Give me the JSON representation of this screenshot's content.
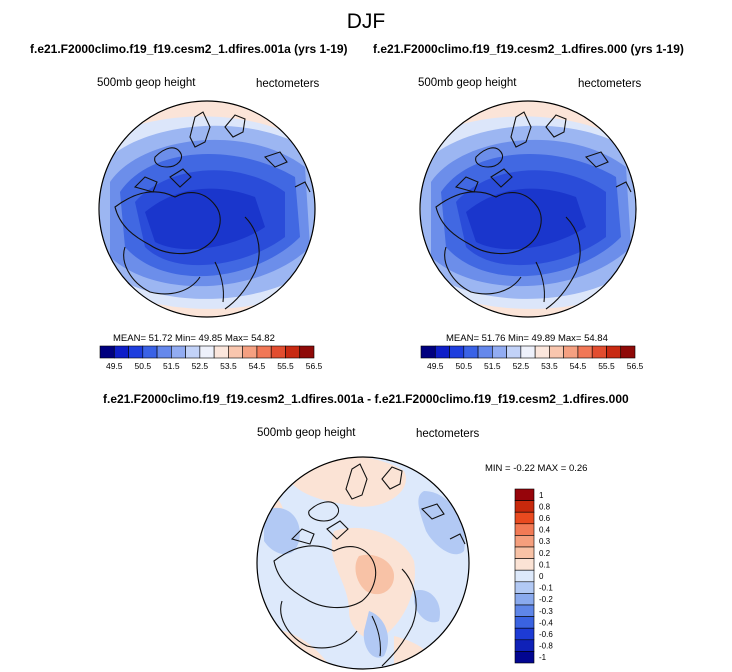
{
  "season": "DJF",
  "maps": [
    {
      "run_title": "f.e21.F2000climo.f19_f19.cesm2_1.dfires.001a (yrs 1-19)",
      "variable": "500mb geop height",
      "units": "hectometers",
      "stats": "MEAN= 51.72  Min= 49.85  Max= 54.82",
      "colorbar": {
        "colors": [
          "#00007f",
          "#0e1ec8",
          "#1e3ede",
          "#3a62e6",
          "#6588ec",
          "#92acf2",
          "#c2d2f8",
          "#eef1fb",
          "#fbe6dc",
          "#f9c6ae",
          "#f5a081",
          "#f17756",
          "#e24d2f",
          "#c82a12",
          "#8f0a08"
        ],
        "tick_labels": [
          "49.5",
          "50.5",
          "51.5",
          "52.5",
          "53.5",
          "54.5",
          "55.5",
          "56.5"
        ]
      }
    },
    {
      "run_title": "f.e21.F2000climo.f19_f19.cesm2_1.dfires.000 (yrs 1-19)",
      "variable": "500mb geop height",
      "units": "hectometers",
      "stats": "MEAN= 51.76  Min= 49.89  Max= 54.84",
      "colorbar": {
        "colors": [
          "#00007f",
          "#0e1ec8",
          "#1e3ede",
          "#3a62e6",
          "#6588ec",
          "#92acf2",
          "#c2d2f8",
          "#eef1fb",
          "#fbe6dc",
          "#f9c6ae",
          "#f5a081",
          "#f17756",
          "#e24d2f",
          "#c82a12",
          "#8f0a08"
        ],
        "tick_labels": [
          "49.5",
          "50.5",
          "51.5",
          "52.5",
          "53.5",
          "54.5",
          "55.5",
          "56.5"
        ]
      }
    }
  ],
  "difference": {
    "title": "f.e21.F2000climo.f19_f19.cesm2_1.dfires.001a - f.e21.F2000climo.f19_f19.cesm2_1.dfires.000",
    "variable": "500mb geop height",
    "units": "hectometers",
    "stats": "MIN = -0.22 MAX =   0.26",
    "colorbar": {
      "colors": [
        "#96040a",
        "#c7290c",
        "#e94a1f",
        "#f27a55",
        "#f59f7d",
        "#f8c2a6",
        "#fbe3d5",
        "#dde9fb",
        "#b2c9f4",
        "#8aaaee",
        "#5f86e8",
        "#3a63e1",
        "#1d3bd5",
        "#0f21b8",
        "#020691"
      ],
      "tick_labels": [
        "1",
        "0.8",
        "0.6",
        "0.4",
        "0.3",
        "0.2",
        "0.1",
        "0",
        "-0.1",
        "-0.2",
        "-0.3",
        "-0.4",
        "-0.6",
        "-0.8",
        "-1"
      ]
    }
  }
}
